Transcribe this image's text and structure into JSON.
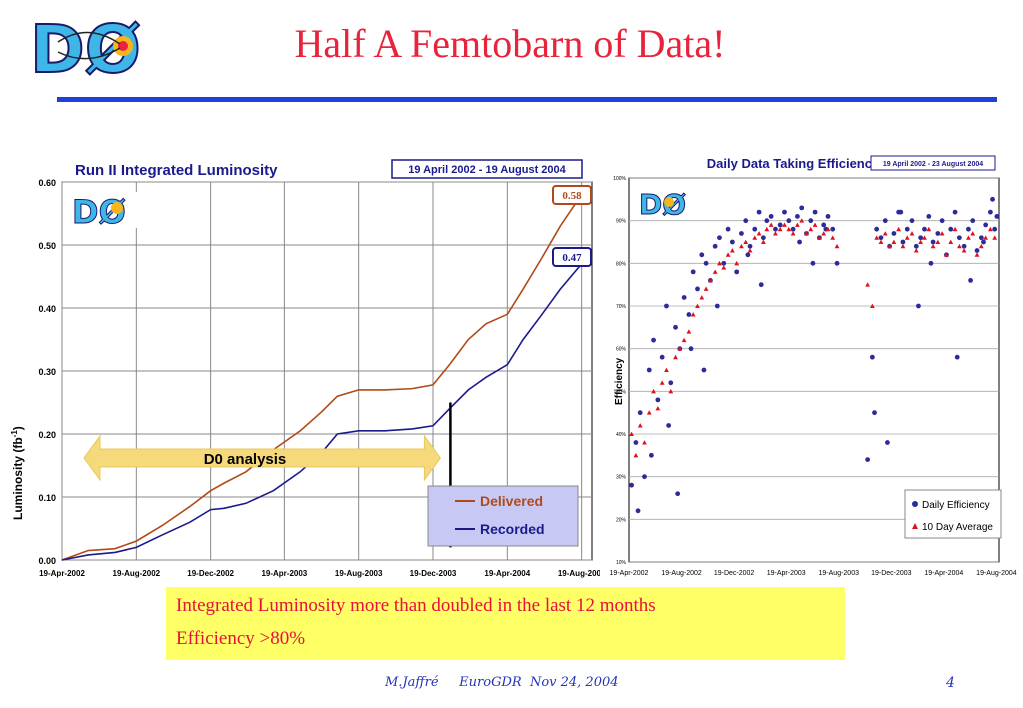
{
  "header": {
    "title": "Half A Femtobarn of Data!",
    "logo_text": "DØ"
  },
  "colors": {
    "title": "#e8243c",
    "rule": "#1f3fd9",
    "delivered": "#b04a1a",
    "recorded": "#1a1a8c",
    "arrow": "#f5d97a",
    "eff_daily": "#2b2b9a",
    "eff_avg": "#e01020",
    "summary_bg": "#ffff66",
    "summary_text": "#e8103a"
  },
  "chart_data": [
    {
      "type": "line",
      "title": "Run II Integrated Luminosity",
      "date_range": "19 April 2002 - 19 August 2004",
      "xlabel": "",
      "ylabel": "Luminosity (fb",
      "ylabel_sup": "-1",
      "ylabel_end": ")",
      "x_ticks": [
        "19-Apr-2002",
        "19-Aug-2002",
        "19-Dec-2002",
        "19-Apr-2003",
        "19-Aug-2003",
        "19-Dec-2003",
        "19-Apr-2004",
        "19-Aug-2004"
      ],
      "y_ticks": [
        "0.00",
        "0.10",
        "0.20",
        "0.30",
        "0.40",
        "0.50",
        "0.60"
      ],
      "ylim": [
        0,
        0.6
      ],
      "grid": true,
      "legend_position": "bottom-right",
      "series": [
        {
          "name": "Delivered",
          "end_label": "0.58",
          "x": [
            "2002-04-19",
            "2002-06-01",
            "2002-07-15",
            "2002-08-19",
            "2002-10-01",
            "2002-11-15",
            "2002-12-19",
            "2003-01-10",
            "2003-02-15",
            "2003-04-01",
            "2003-05-15",
            "2003-06-19",
            "2003-07-15",
            "2003-08-19",
            "2003-10-01",
            "2003-11-15",
            "2003-12-19",
            "2004-01-15",
            "2004-02-15",
            "2004-03-15",
            "2004-04-19",
            "2004-05-15",
            "2004-06-15",
            "2004-07-15",
            "2004-08-19"
          ],
          "y": [
            0,
            0.015,
            0.018,
            0.03,
            0.055,
            0.085,
            0.11,
            0.122,
            0.14,
            0.175,
            0.205,
            0.235,
            0.26,
            0.27,
            0.27,
            0.272,
            0.278,
            0.31,
            0.35,
            0.375,
            0.39,
            0.43,
            0.48,
            0.53,
            0.58
          ]
        },
        {
          "name": "Recorded",
          "end_label": "0.47",
          "x": [
            "2002-04-19",
            "2002-06-01",
            "2002-07-15",
            "2002-08-19",
            "2002-10-01",
            "2002-11-15",
            "2002-12-19",
            "2003-01-10",
            "2003-02-15",
            "2003-04-01",
            "2003-05-15",
            "2003-06-19",
            "2003-07-15",
            "2003-08-19",
            "2003-10-01",
            "2003-11-15",
            "2003-12-19",
            "2004-01-15",
            "2004-02-15",
            "2004-03-15",
            "2004-04-19",
            "2004-05-15",
            "2004-06-15",
            "2004-07-15",
            "2004-08-19"
          ],
          "y": [
            0,
            0.008,
            0.012,
            0.02,
            0.04,
            0.06,
            0.08,
            0.082,
            0.09,
            0.11,
            0.14,
            0.17,
            0.2,
            0.205,
            0.205,
            0.208,
            0.213,
            0.24,
            0.27,
            0.29,
            0.31,
            0.35,
            0.39,
            0.43,
            0.47
          ]
        }
      ],
      "annotations": {
        "arrow_label": "D0 analysis",
        "arrow_from": "2002-04-19",
        "arrow_to": "2004-01-10",
        "arrow_y": 0.162,
        "cut_line_x": "2004-01-10"
      }
    },
    {
      "type": "scatter",
      "title": "Daily Data Taking Efficiency",
      "date_range": "19 April 2002 - 23 August 2004",
      "xlabel": "",
      "ylabel": "Efficiency",
      "x_ticks": [
        "19-Apr-2002",
        "19-Aug-2002",
        "19-Dec-2002",
        "19-Apr-2003",
        "19-Aug-2003",
        "19-Dec-2003",
        "19-Apr-2004",
        "19-Aug-2004"
      ],
      "y_ticks": [
        "10%",
        "20%",
        "30%",
        "40%",
        "50%",
        "60%",
        "70%",
        "80%",
        "90%",
        "100%"
      ],
      "ylim": [
        10,
        100
      ],
      "grid": true,
      "legend_position": "bottom-right",
      "series": [
        {
          "name": "Daily Efficiency",
          "x": [
            "2002-04-25",
            "2002-05-05",
            "2002-05-15",
            "2002-05-25",
            "2002-06-05",
            "2002-06-15",
            "2002-06-25",
            "2002-07-05",
            "2002-07-15",
            "2002-07-25",
            "2002-08-05",
            "2002-08-15",
            "2002-08-25",
            "2002-09-05",
            "2002-09-15",
            "2002-09-25",
            "2002-10-05",
            "2002-10-15",
            "2002-10-25",
            "2002-11-05",
            "2002-11-15",
            "2002-11-25",
            "2002-12-05",
            "2002-12-15",
            "2002-12-25",
            "2003-01-05",
            "2003-01-15",
            "2003-01-25",
            "2003-02-05",
            "2003-02-15",
            "2003-02-25",
            "2003-03-05",
            "2003-03-15",
            "2003-03-25",
            "2003-04-05",
            "2003-04-15",
            "2003-04-25",
            "2003-05-05",
            "2003-05-15",
            "2003-05-25",
            "2003-06-05",
            "2003-06-15",
            "2003-06-25",
            "2003-07-05",
            "2003-07-15",
            "2003-07-25",
            "2003-08-05",
            "2003-08-15",
            "2003-10-25",
            "2003-11-05",
            "2003-11-15",
            "2003-11-25",
            "2003-12-05",
            "2003-12-15",
            "2003-12-25",
            "2004-01-05",
            "2004-01-15",
            "2004-01-25",
            "2004-02-05",
            "2004-02-15",
            "2004-02-25",
            "2004-03-05",
            "2004-03-15",
            "2004-03-25",
            "2004-04-05",
            "2004-04-15",
            "2004-04-25",
            "2004-05-05",
            "2004-05-15",
            "2004-05-25",
            "2004-06-05",
            "2004-06-15",
            "2004-06-25",
            "2004-07-05",
            "2004-07-15",
            "2004-07-25",
            "2004-08-05",
            "2004-08-15",
            "2004-08-20",
            "2002-05-10",
            "2002-06-10",
            "2002-07-20",
            "2002-08-10",
            "2002-09-10",
            "2002-10-10",
            "2002-11-10",
            "2003-01-20",
            "2003-02-20",
            "2003-05-20",
            "2003-06-20",
            "2003-07-20",
            "2003-11-10",
            "2003-12-10",
            "2004-01-10",
            "2004-02-20",
            "2004-03-20",
            "2004-05-20",
            "2004-06-20",
            "2004-07-20",
            "2004-08-10"
          ],
          "y": [
            28,
            38,
            45,
            30,
            55,
            62,
            48,
            58,
            70,
            52,
            65,
            60,
            72,
            68,
            78,
            74,
            82,
            80,
            76,
            84,
            86,
            80,
            88,
            85,
            78,
            87,
            90,
            84,
            88,
            92,
            86,
            90,
            91,
            88,
            89,
            92,
            90,
            88,
            91,
            93,
            87,
            90,
            92,
            86,
            89,
            91,
            88,
            80,
            34,
            58,
            88,
            86,
            90,
            84,
            87,
            92,
            85,
            88,
            90,
            84,
            86,
            88,
            91,
            85,
            87,
            90,
            82,
            88,
            92,
            86,
            84,
            88,
            90,
            83,
            86,
            89,
            92,
            88,
            91,
            22,
            35,
            42,
            26,
            60,
            55,
            70,
            82,
            75,
            85,
            80,
            88,
            45,
            38,
            92,
            70,
            80,
            58,
            76,
            85,
            95
          ]
        },
        {
          "name": "10 Day Average",
          "x": [
            "2002-04-25",
            "2002-05-05",
            "2002-05-15",
            "2002-05-25",
            "2002-06-05",
            "2002-06-15",
            "2002-06-25",
            "2002-07-05",
            "2002-07-15",
            "2002-07-25",
            "2002-08-05",
            "2002-08-15",
            "2002-08-25",
            "2002-09-05",
            "2002-09-15",
            "2002-09-25",
            "2002-10-05",
            "2002-10-15",
            "2002-10-25",
            "2002-11-05",
            "2002-11-15",
            "2002-11-25",
            "2002-12-05",
            "2002-12-15",
            "2002-12-25",
            "2003-01-05",
            "2003-01-15",
            "2003-01-25",
            "2003-02-05",
            "2003-02-15",
            "2003-02-25",
            "2003-03-05",
            "2003-03-15",
            "2003-03-25",
            "2003-04-05",
            "2003-04-15",
            "2003-04-25",
            "2003-05-05",
            "2003-05-15",
            "2003-05-25",
            "2003-06-05",
            "2003-06-15",
            "2003-06-25",
            "2003-07-05",
            "2003-07-15",
            "2003-07-25",
            "2003-08-05",
            "2003-08-15",
            "2003-10-25",
            "2003-11-05",
            "2003-11-15",
            "2003-11-25",
            "2003-12-05",
            "2003-12-15",
            "2003-12-25",
            "2004-01-05",
            "2004-01-15",
            "2004-01-25",
            "2004-02-05",
            "2004-02-15",
            "2004-02-25",
            "2004-03-05",
            "2004-03-15",
            "2004-03-25",
            "2004-04-05",
            "2004-04-15",
            "2004-04-25",
            "2004-05-05",
            "2004-05-15",
            "2004-05-25",
            "2004-06-05",
            "2004-06-15",
            "2004-06-25",
            "2004-07-05",
            "2004-07-15",
            "2004-07-25",
            "2004-08-05",
            "2004-08-15"
          ],
          "y": [
            40,
            35,
            42,
            38,
            45,
            50,
            46,
            52,
            55,
            50,
            58,
            60,
            62,
            64,
            68,
            70,
            72,
            74,
            76,
            78,
            80,
            79,
            82,
            83,
            80,
            84,
            85,
            83,
            86,
            87,
            85,
            88,
            89,
            87,
            88,
            89,
            88,
            87,
            89,
            90,
            87,
            88,
            89,
            86,
            87,
            88,
            86,
            84,
            75,
            70,
            86,
            85,
            87,
            84,
            85,
            88,
            84,
            86,
            87,
            83,
            85,
            86,
            88,
            84,
            85,
            87,
            82,
            85,
            88,
            84,
            83,
            86,
            87,
            82,
            84,
            86,
            88,
            86
          ]
        }
      ]
    }
  ],
  "summary": {
    "line1": "Integrated Luminosity more than doubled in the last 12 months",
    "line2": "Efficiency >80%"
  },
  "footer": {
    "text": "M.Jaffré     EuroGDR  Nov 24, 2004",
    "page": "4"
  }
}
